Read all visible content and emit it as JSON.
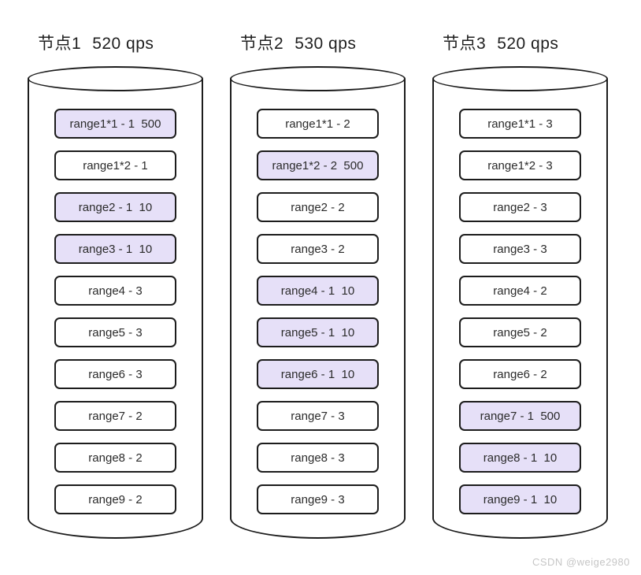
{
  "watermark": "CSDN @weige2980",
  "colors": {
    "highlight_fill": "#e6e0f8",
    "outline": "#1c1c1c"
  },
  "nodes": [
    {
      "title": "节点1",
      "qps": "520 qps",
      "ranges": [
        {
          "label": "range1*1 - 1  500",
          "highlight": true
        },
        {
          "label": "range1*2 - 1",
          "highlight": false
        },
        {
          "label": "range2 - 1  10",
          "highlight": true
        },
        {
          "label": "range3 - 1  10",
          "highlight": true
        },
        {
          "label": "range4 - 3",
          "highlight": false
        },
        {
          "label": "range5 - 3",
          "highlight": false
        },
        {
          "label": "range6 - 3",
          "highlight": false
        },
        {
          "label": "range7 - 2",
          "highlight": false
        },
        {
          "label": "range8 - 2",
          "highlight": false
        },
        {
          "label": "range9 - 2",
          "highlight": false
        }
      ]
    },
    {
      "title": "节点2",
      "qps": "530 qps",
      "ranges": [
        {
          "label": "range1*1 - 2",
          "highlight": false
        },
        {
          "label": "range1*2 - 2  500",
          "highlight": true
        },
        {
          "label": "range2 - 2",
          "highlight": false
        },
        {
          "label": "range3 - 2",
          "highlight": false
        },
        {
          "label": "range4 - 1  10",
          "highlight": true
        },
        {
          "label": "range5 - 1  10",
          "highlight": true
        },
        {
          "label": "range6 - 1  10",
          "highlight": true
        },
        {
          "label": "range7 - 3",
          "highlight": false
        },
        {
          "label": "range8 - 3",
          "highlight": false
        },
        {
          "label": "range9 - 3",
          "highlight": false
        }
      ]
    },
    {
      "title": "节点3",
      "qps": "520 qps",
      "ranges": [
        {
          "label": "range1*1 - 3",
          "highlight": false
        },
        {
          "label": "range1*2 - 3",
          "highlight": false
        },
        {
          "label": "range2 - 3",
          "highlight": false
        },
        {
          "label": "range3 - 3",
          "highlight": false
        },
        {
          "label": "range4 - 2",
          "highlight": false
        },
        {
          "label": "range5 - 2",
          "highlight": false
        },
        {
          "label": "range6 - 2",
          "highlight": false
        },
        {
          "label": "range7 - 1  500",
          "highlight": true
        },
        {
          "label": "range8 - 1  10",
          "highlight": true
        },
        {
          "label": "range9 - 1  10",
          "highlight": true
        }
      ]
    }
  ]
}
